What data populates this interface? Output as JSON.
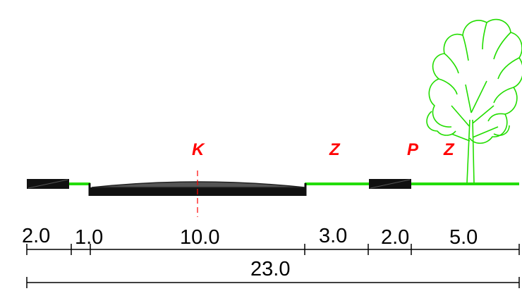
{
  "labels": {
    "K": "K",
    "Z1": "Z",
    "P": "P",
    "Z2": "Z"
  },
  "dimensions": {
    "seg1": "2.0",
    "seg2": "1.0",
    "seg3": "10.0",
    "seg4": "3.0",
    "seg5": "2.0",
    "seg6": "5.0",
    "total": "23.0"
  },
  "colors": {
    "label": "#ff0000",
    "green": "#22dd00",
    "road": "#444444",
    "black": "#111111"
  }
}
